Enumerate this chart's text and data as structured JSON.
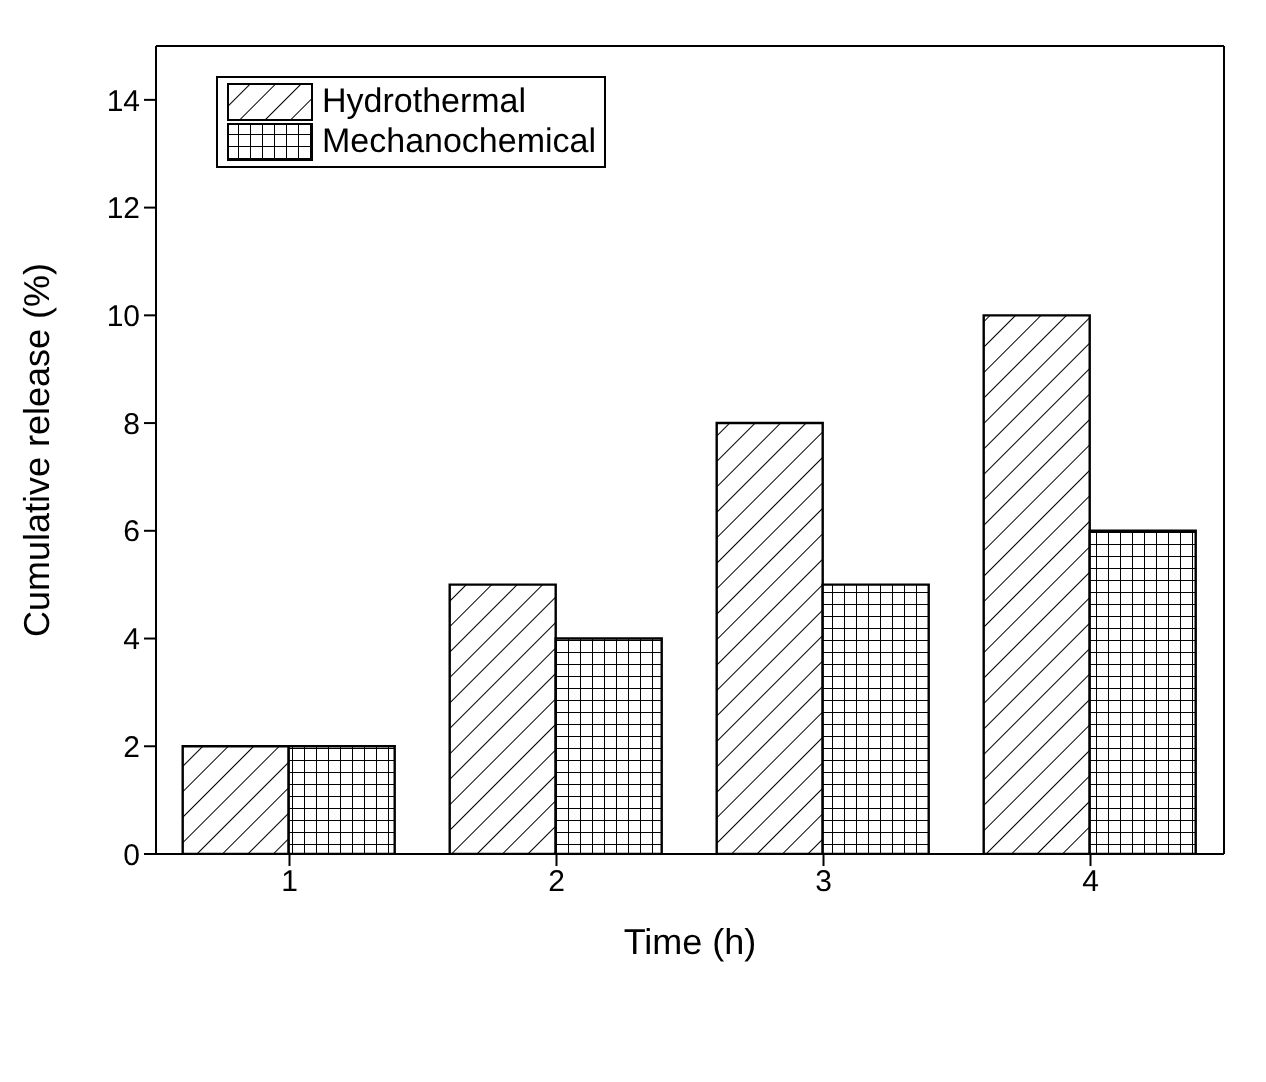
{
  "chart_data": {
    "type": "bar",
    "xlabel": "Time (h)",
    "ylabel": "Cumulative release (%)",
    "categories": [
      "1",
      "2",
      "3",
      "4"
    ],
    "series": [
      {
        "name": "Hydrothermal",
        "color": "#000000",
        "values": [
          2,
          5,
          8,
          10
        ]
      },
      {
        "name": "Mechanochemical",
        "color": "#000000",
        "values": [
          2,
          4,
          5,
          6
        ]
      }
    ],
    "ylim": [
      0,
      15
    ],
    "yticks": [
      0,
      2,
      4,
      6,
      8,
      10,
      12,
      14
    ],
    "legend": "top left"
  }
}
